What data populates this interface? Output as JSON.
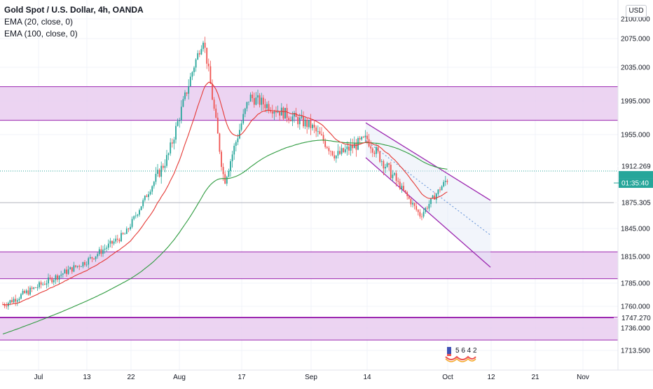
{
  "legend": {
    "title": "Gold Spot / U.S. Dollar, 4h, OANDA",
    "ema20": "EMA (20, close, 0)",
    "ema100": "EMA (100, close, 0)"
  },
  "currency_button": "USD",
  "price_labels": {
    "current": "1912.269",
    "countdown": "01:35:40",
    "level_a": "1875.305",
    "level_b": "1747.270"
  },
  "badge": {
    "digits": "5 6 4 2"
  },
  "colors": {
    "up": "#26a69a",
    "down": "#ef5350",
    "ema20": "#e53935",
    "ema100": "#2e9b3f",
    "zone_fill": "#e9cdf0",
    "zone_border": "#9c27b0",
    "channel": "#9c27b0",
    "current_tag": "#26a69a",
    "price_tag": "#131722"
  },
  "chart_data": {
    "type": "candlestick",
    "symbol": "Gold Spot / U.S. Dollar",
    "interval": "4h",
    "source": "OANDA",
    "ylim": [
      1700,
      2115
    ],
    "y_ticks": [
      "2100.000",
      "2075.000",
      "2035.000",
      "1995.000",
      "1955.000",
      "1845.000",
      "1815.000",
      "1785.000",
      "1760.000",
      "1736.000",
      "1713.500"
    ],
    "x_ticks": [
      "Jul",
      "13",
      "22",
      "Aug",
      "17",
      "Sep",
      "14",
      "Oct",
      "12",
      "21",
      "Nov"
    ],
    "current_price": 1912.269,
    "horizontal_levels": [
      1875.305,
      1747.27
    ],
    "zones": [
      {
        "low": 1972,
        "high": 2012
      },
      {
        "low": 1790,
        "high": 1820
      },
      {
        "low": 1724,
        "high": 1748
      }
    ],
    "channel": {
      "start": "Sep 14",
      "upper": [
        1969,
        1878
      ],
      "middle": [
        1948,
        1838
      ],
      "lower": [
        1928,
        1803
      ]
    },
    "price_path": [
      [
        "Jul",
        1762
      ],
      [
        "13",
        1810
      ],
      [
        "22",
        1840
      ],
      [
        "Aug",
        1930
      ],
      [
        "Aug 5",
        2075
      ],
      [
        "Aug 10",
        1900
      ],
      [
        "17",
        2000
      ],
      [
        "Sep",
        1965
      ],
      [
        "Sep 8",
        1930
      ],
      [
        "14",
        1950
      ],
      [
        "Sep 24",
        1860
      ],
      [
        "Oct",
        1905
      ]
    ]
  }
}
